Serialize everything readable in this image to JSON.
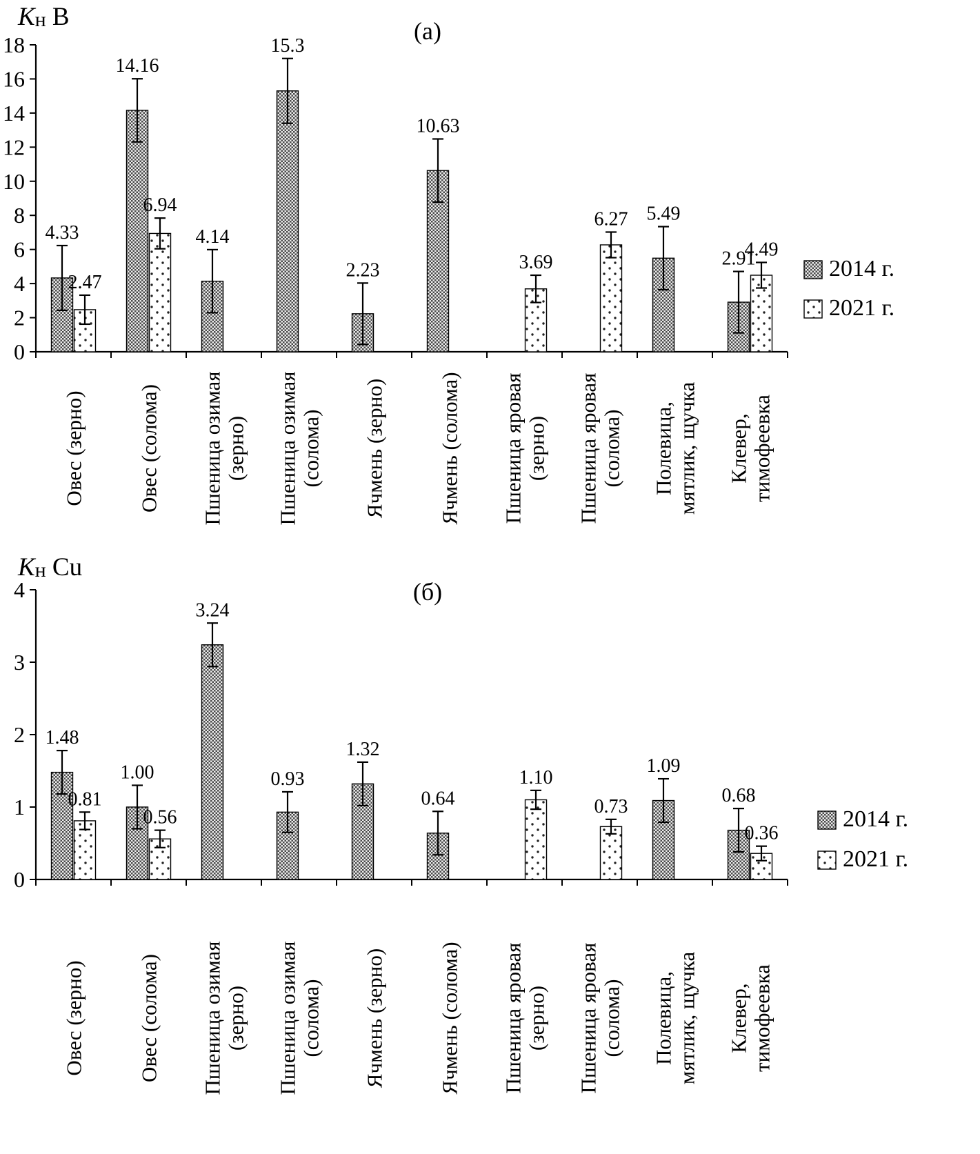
{
  "figure": {
    "description_colors": {
      "ink": "#000000",
      "background": "#ffffff",
      "hatch_dark": "#4a4a4a",
      "hatch_light": "#ededed"
    },
    "legend_items": [
      "2014 г.",
      "2021 г."
    ]
  },
  "chart_data": [
    {
      "type": "bar",
      "panel_label": "(а)",
      "title": "Кн B",
      "title_parts": [
        {
          "text": "К",
          "style": "italic"
        },
        {
          "text": "н",
          "style": "sub"
        },
        {
          "text": " B",
          "style": "normal"
        }
      ],
      "ylim": [
        0,
        18
      ],
      "ytick_step": 2,
      "grid": false,
      "legend_position": "right",
      "categories": [
        [
          "Овес (зерно)"
        ],
        [
          "Овес (солома)"
        ],
        [
          "Пшеница озимая",
          "(зерно)"
        ],
        [
          "Пшеница озимая",
          "(солома)"
        ],
        [
          "Ячмень (зерно)"
        ],
        [
          "Ячмень (солома)"
        ],
        [
          "Пшеница яровая",
          "(зерно)"
        ],
        [
          "Пшеница яровая",
          "(солома)"
        ],
        [
          "Полевица,",
          "мятлик, щучка"
        ],
        [
          "Клевер,",
          "тимофеевка"
        ]
      ],
      "series": [
        {
          "name": "2014 г.",
          "pattern": "crosshatch",
          "points": [
            {
              "label": "4.33",
              "value": 4.33,
              "error": 1.9
            },
            {
              "label": "14.16",
              "value": 14.16,
              "error": 1.85
            },
            {
              "label": "4.14",
              "value": 4.14,
              "error": 1.85
            },
            {
              "label": "15.3",
              "value": 15.3,
              "error": 1.9
            },
            {
              "label": "2.23",
              "value": 2.23,
              "error": 1.8
            },
            {
              "label": "10.63",
              "value": 10.63,
              "error": 1.85
            },
            null,
            null,
            {
              "label": "5.49",
              "value": 5.49,
              "error": 1.85
            },
            {
              "label": "2.91",
              "value": 2.91,
              "error": 1.8
            }
          ]
        },
        {
          "name": "2021 г.",
          "pattern": "dots",
          "points": [
            {
              "label": "2.47",
              "value": 2.47,
              "error": 0.85
            },
            {
              "label": "6.94",
              "value": 6.94,
              "error": 0.9
            },
            null,
            null,
            null,
            null,
            {
              "label": "3.69",
              "value": 3.69,
              "error": 0.8
            },
            {
              "label": "6.27",
              "value": 6.27,
              "error": 0.75
            },
            null,
            {
              "label": "4.49",
              "value": 4.49,
              "error": 0.75
            }
          ]
        }
      ]
    },
    {
      "type": "bar",
      "panel_label": "(б)",
      "title": "Кн Cu",
      "title_parts": [
        {
          "text": "К",
          "style": "italic"
        },
        {
          "text": "н",
          "style": "sub"
        },
        {
          "text": " Cu",
          "style": "normal"
        }
      ],
      "ylim": [
        0,
        4
      ],
      "ytick_step": 1,
      "grid": false,
      "legend_position": "right",
      "categories": [
        [
          "Овес (зерно)"
        ],
        [
          "Овес (солома)"
        ],
        [
          "Пшеница озимая",
          "(зерно)"
        ],
        [
          "Пшеница озимая",
          "(солома)"
        ],
        [
          "Ячмень (зерно)"
        ],
        [
          "Ячмень (солома)"
        ],
        [
          "Пшеница яровая",
          "(зерно)"
        ],
        [
          "Пшеница яровая",
          "(солома)"
        ],
        [
          "Полевица,",
          "мятлик, щучка"
        ],
        [
          "Клевер,",
          "тимофеевка"
        ]
      ],
      "series": [
        {
          "name": "2014 г.",
          "pattern": "crosshatch",
          "points": [
            {
              "label": "1.48",
              "value": 1.48,
              "error": 0.3
            },
            {
              "label": "1.00",
              "value": 1.0,
              "error": 0.3
            },
            {
              "label": "3.24",
              "value": 3.24,
              "error": 0.3
            },
            {
              "label": "0.93",
              "value": 0.93,
              "error": 0.28
            },
            {
              "label": "1.32",
              "value": 1.32,
              "error": 0.3
            },
            {
              "label": "0.64",
              "value": 0.64,
              "error": 0.3
            },
            null,
            null,
            {
              "label": "1.09",
              "value": 1.09,
              "error": 0.3
            },
            {
              "label": "0.68",
              "value": 0.68,
              "error": 0.3
            }
          ]
        },
        {
          "name": "2021 г.",
          "pattern": "dots",
          "points": [
            {
              "label": "0.81",
              "value": 0.81,
              "error": 0.12
            },
            {
              "label": "0.56",
              "value": 0.56,
              "error": 0.12
            },
            null,
            null,
            null,
            null,
            {
              "label": "1.10",
              "value": 1.1,
              "error": 0.13
            },
            {
              "label": "0.73",
              "value": 0.73,
              "error": 0.1
            },
            null,
            {
              "label": "0.36",
              "value": 0.36,
              "error": 0.1
            }
          ]
        }
      ]
    }
  ]
}
